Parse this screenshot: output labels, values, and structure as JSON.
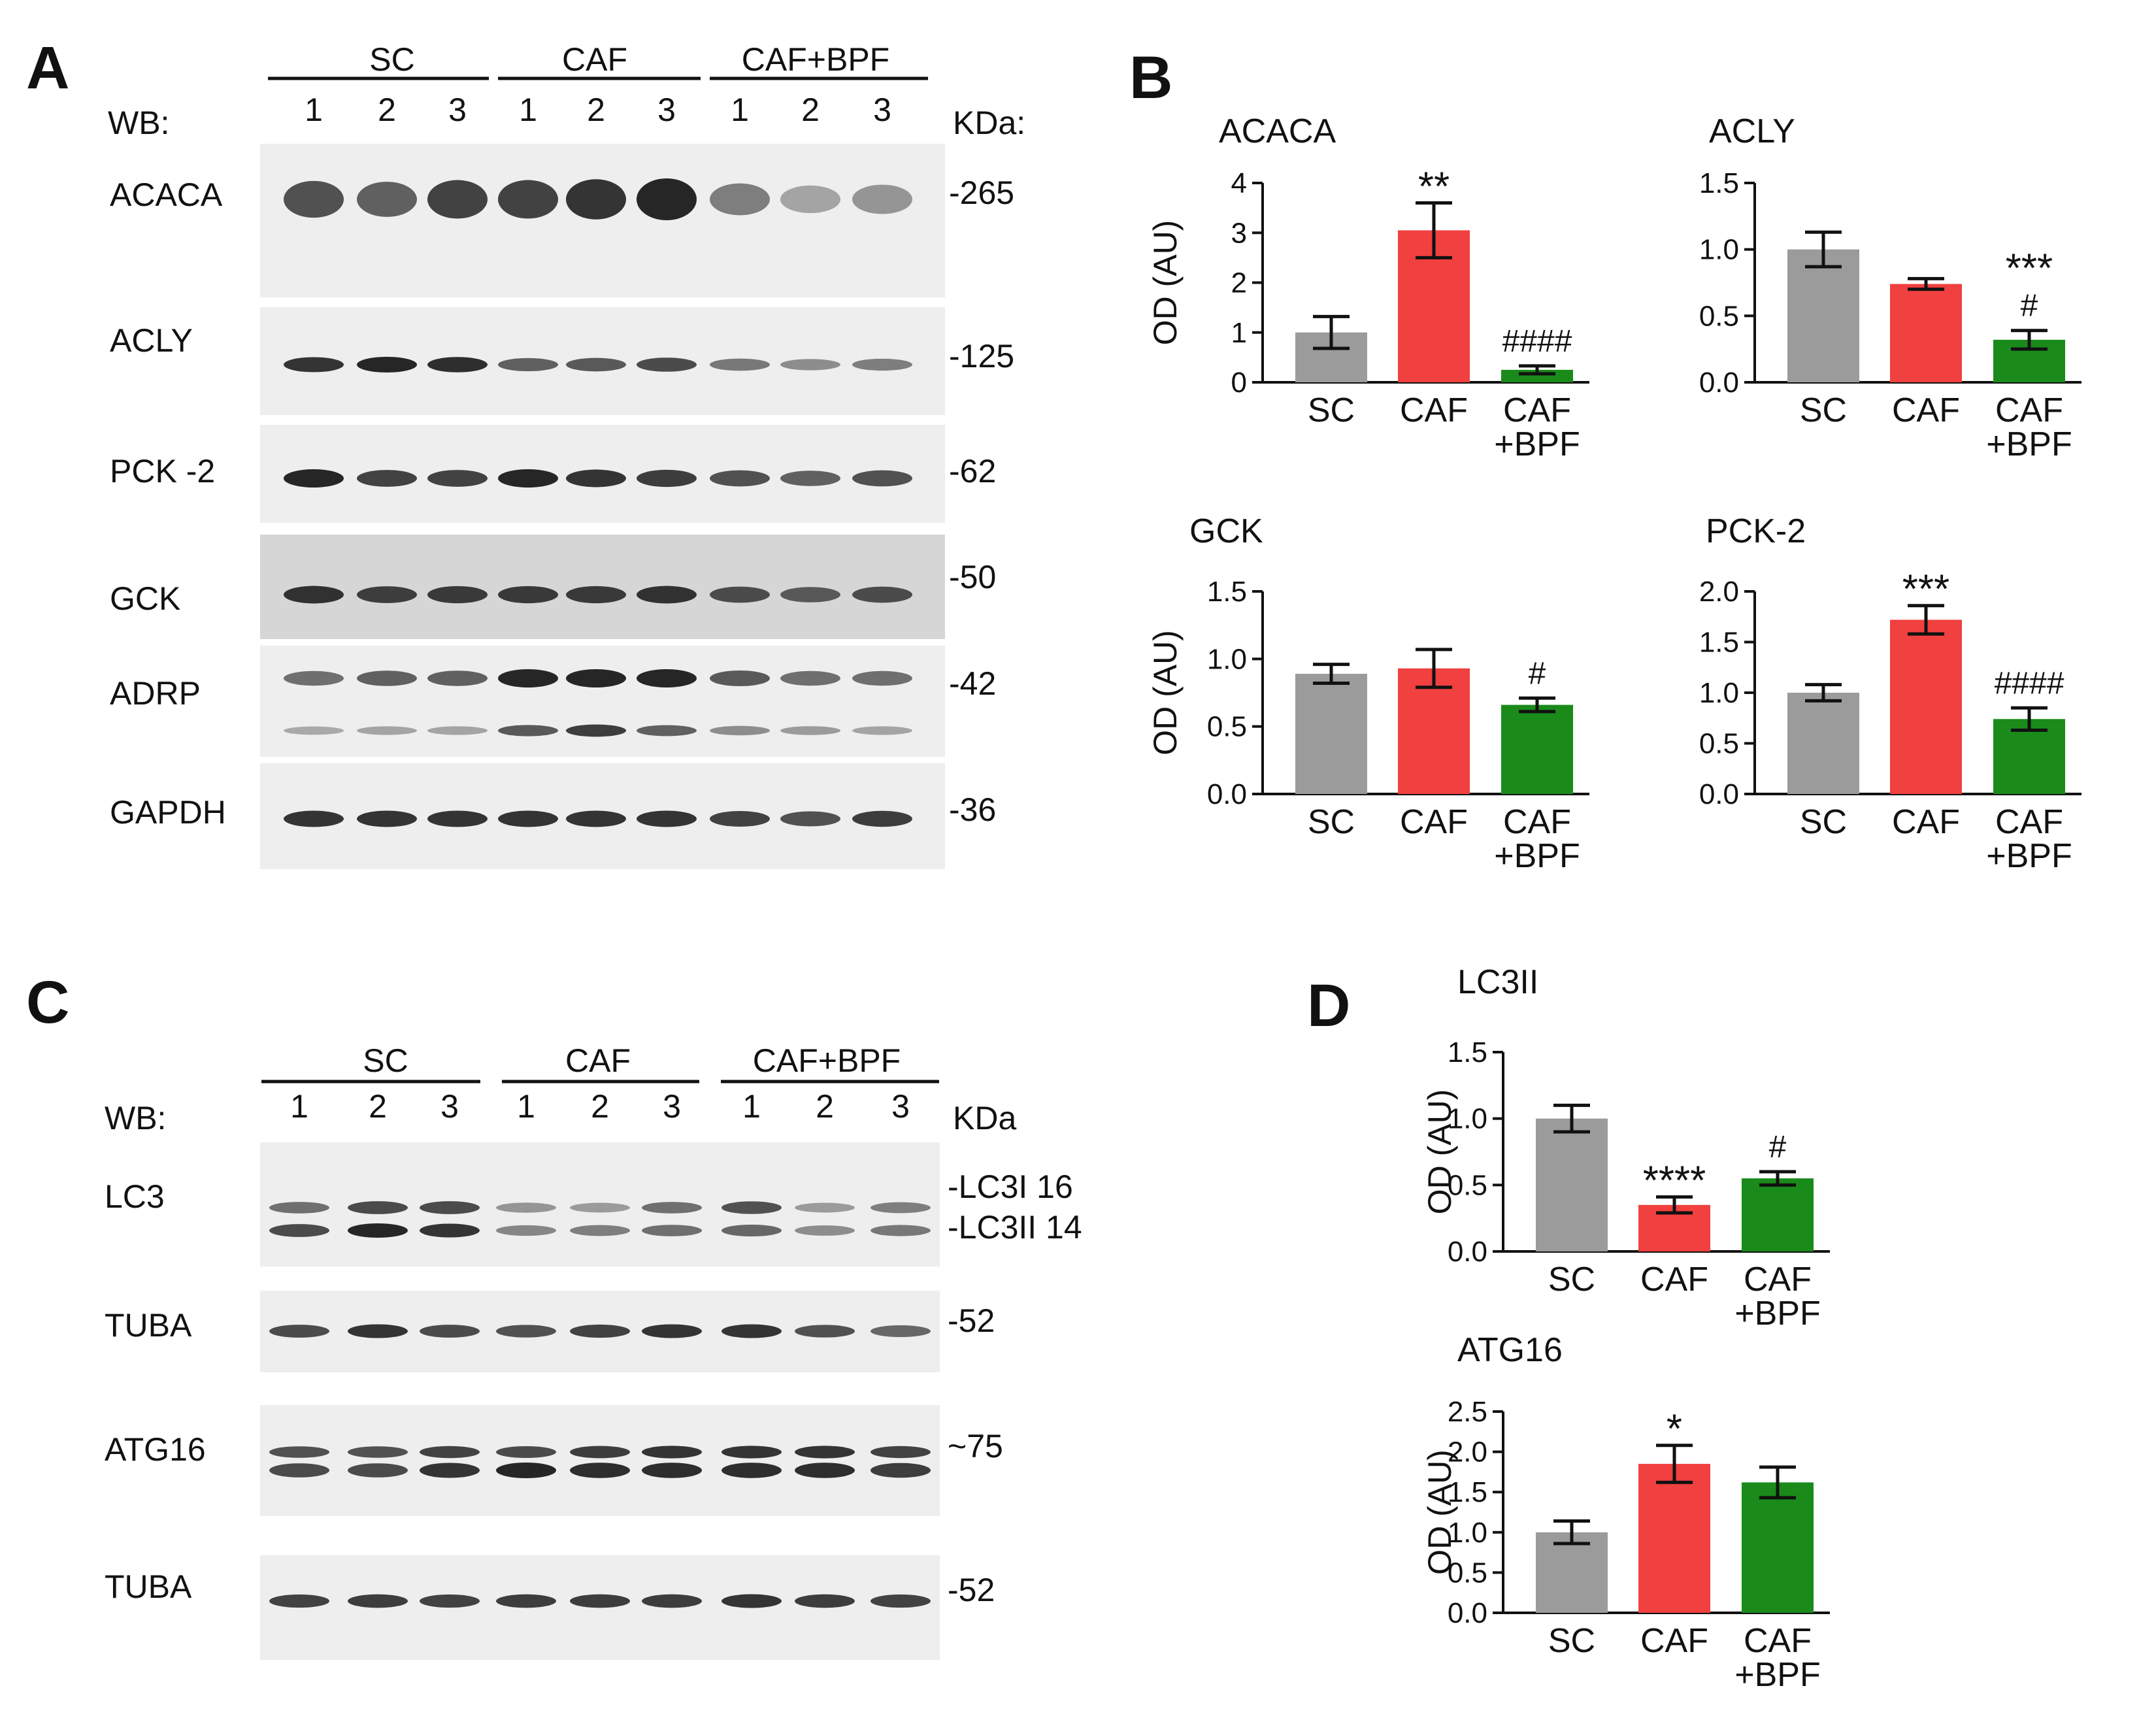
{
  "panels": {
    "A": "A",
    "B": "B",
    "C": "C",
    "D": "D"
  },
  "blotA": {
    "wb_label": "WB:",
    "kda_label": "KDa:",
    "groups": [
      "SC",
      "CAF",
      "CAF+BPF"
    ],
    "lanes": [
      "1",
      "2",
      "3",
      "1",
      "2",
      "3",
      "1",
      "2",
      "3"
    ],
    "rows": [
      {
        "name": "ACACA",
        "mw": "-265"
      },
      {
        "name": "ACLY",
        "mw": "-125"
      },
      {
        "name": "PCK -2",
        "mw": "-62"
      },
      {
        "name": "GCK",
        "mw": "-50"
      },
      {
        "name": "ADRP",
        "mw": "-42"
      },
      {
        "name": "GAPDH",
        "mw": "-36"
      }
    ]
  },
  "blotC": {
    "wb_label": "WB:",
    "kda_label": "KDa",
    "groups": [
      "SC",
      "CAF",
      "CAF+BPF"
    ],
    "lanes": [
      "1",
      "2",
      "3",
      "1",
      "2",
      "3",
      "1",
      "2",
      "3"
    ],
    "rows": [
      {
        "name": "LC3",
        "mw": "-LC3I 16",
        "mw2": "-LC3II 14"
      },
      {
        "name": "TUBA",
        "mw": "-52"
      },
      {
        "name": "ATG16",
        "mw": "~75"
      },
      {
        "name": "TUBA",
        "mw": "-52"
      }
    ]
  },
  "colors": {
    "SC": "#9b9b9b",
    "CAF": "#f0403f",
    "CAF+BPF": "#1a8a1a"
  },
  "chart_data": [
    {
      "panel": "B",
      "type": "bar",
      "title": "ACACA",
      "ylabel": "OD (AU)",
      "categories": [
        "SC",
        "CAF",
        "CAF\n+BPF"
      ],
      "values": [
        1.0,
        3.05,
        0.25
      ],
      "errors": [
        0.32,
        0.55,
        0.08
      ],
      "ylim": [
        0,
        4
      ],
      "yticks": [
        "0",
        "1",
        "2",
        "3",
        "4"
      ],
      "annotations": [
        "",
        "**",
        "####"
      ]
    },
    {
      "panel": "B",
      "type": "bar",
      "title": "ACLY",
      "ylabel": "",
      "categories": [
        "SC",
        "CAF",
        "CAF\n+BPF"
      ],
      "values": [
        1.0,
        0.74,
        0.32
      ],
      "errors": [
        0.13,
        0.04,
        0.07
      ],
      "ylim": [
        0,
        1.5
      ],
      "yticks": [
        "0.0",
        "0.5",
        "1.0",
        "1.5"
      ],
      "annotations": [
        "",
        "",
        "***\n#"
      ]
    },
    {
      "panel": "B",
      "type": "bar",
      "title": "GCK",
      "ylabel": "OD (AU)",
      "categories": [
        "SC",
        "CAF",
        "CAF\n+BPF"
      ],
      "values": [
        0.89,
        0.93,
        0.66
      ],
      "errors": [
        0.07,
        0.14,
        0.05
      ],
      "ylim": [
        0,
        1.5
      ],
      "yticks": [
        "0.0",
        "0.5",
        "1.0",
        "1.5"
      ],
      "annotations": [
        "",
        "",
        "#"
      ]
    },
    {
      "panel": "B",
      "type": "bar",
      "title": "PCK-2",
      "ylabel": "",
      "categories": [
        "SC",
        "CAF",
        "CAF\n+BPF"
      ],
      "values": [
        1.0,
        1.72,
        0.74
      ],
      "errors": [
        0.08,
        0.14,
        0.11
      ],
      "ylim": [
        0,
        2.0
      ],
      "yticks": [
        "0.0",
        "0.5",
        "1.0",
        "1.5",
        "2.0"
      ],
      "annotations": [
        "",
        "***",
        "####"
      ]
    },
    {
      "panel": "D",
      "type": "bar",
      "title": "LC3II",
      "ylabel": "OD (AU)",
      "categories": [
        "SC",
        "CAF",
        "CAF\n+BPF"
      ],
      "values": [
        1.0,
        0.35,
        0.55
      ],
      "errors": [
        0.1,
        0.06,
        0.05
      ],
      "ylim": [
        0,
        1.5
      ],
      "yticks": [
        "0.0",
        "0.5",
        "1.0",
        "1.5"
      ],
      "annotations": [
        "",
        "****",
        "#"
      ]
    },
    {
      "panel": "D",
      "type": "bar",
      "title": "ATG16",
      "ylabel": "OD (AU)",
      "categories": [
        "SC",
        "CAF",
        "CAF\n+BPF"
      ],
      "values": [
        1.0,
        1.85,
        1.62
      ],
      "errors": [
        0.14,
        0.23,
        0.19
      ],
      "ylim": [
        0,
        2.5
      ],
      "yticks": [
        "0.0",
        "0.5",
        "1.0",
        "1.5",
        "2.0",
        "2.5"
      ],
      "annotations": [
        "",
        "*",
        ""
      ]
    }
  ]
}
